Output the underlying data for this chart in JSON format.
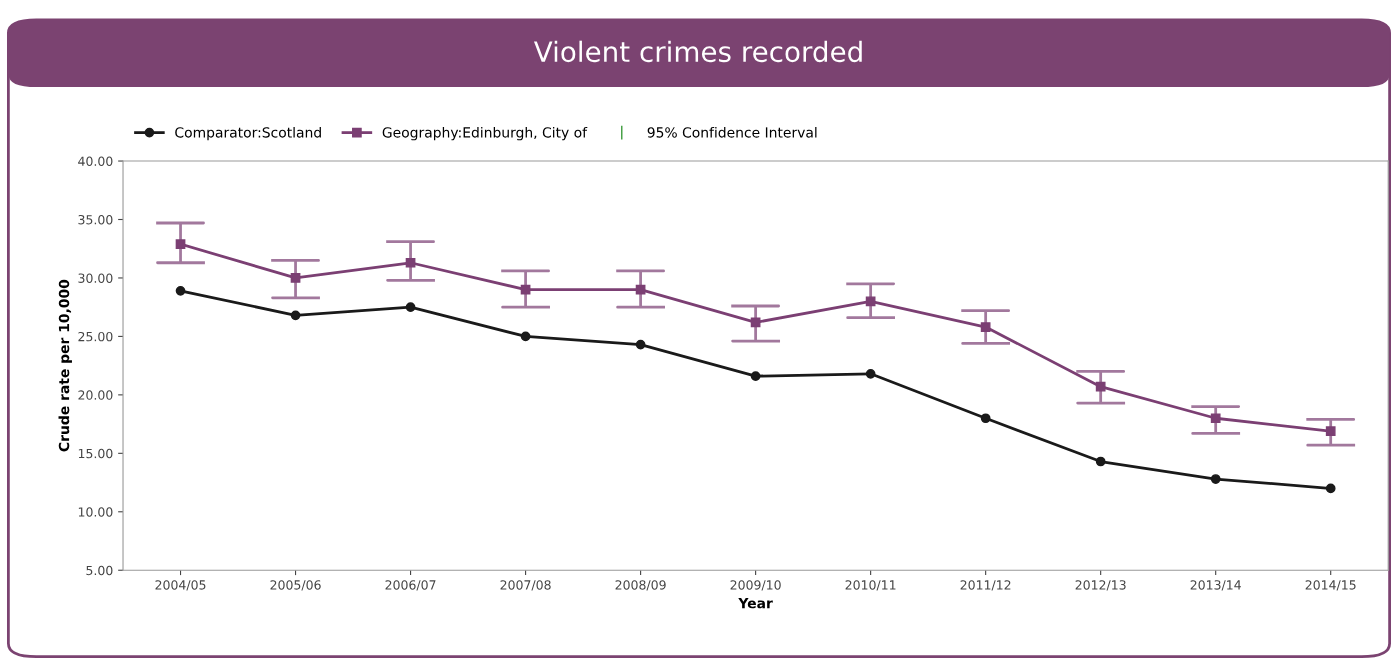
{
  "chart_data": {
    "type": "line",
    "title": "Violent crimes recorded",
    "xlabel": "Year",
    "ylabel": "Crude rate per 10,000",
    "categories": [
      "2004/05",
      "2005/06",
      "2006/07",
      "2007/08",
      "2008/09",
      "2009/10",
      "2010/11",
      "2011/12",
      "2012/13",
      "2013/14",
      "2014/15"
    ],
    "series": [
      {
        "name": "Comparator:Scotland",
        "color": "#1a1a1a",
        "marker": "circle",
        "values": [
          28.9,
          26.8,
          27.5,
          25.0,
          24.3,
          21.6,
          21.8,
          18.0,
          14.3,
          12.8,
          12.0
        ]
      },
      {
        "name": "Geography:Edinburgh, City of",
        "color": "#7b3f73",
        "marker": "square",
        "values": [
          32.9,
          30.0,
          31.3,
          29.0,
          29.0,
          26.2,
          28.0,
          25.8,
          20.7,
          18.0,
          16.9
        ],
        "errors": [
          [
            31.3,
            34.7
          ],
          [
            28.3,
            31.5
          ],
          [
            29.8,
            33.1
          ],
          [
            27.5,
            30.6
          ],
          [
            27.5,
            30.6
          ],
          [
            24.6,
            27.6
          ],
          [
            26.6,
            29.5
          ],
          [
            24.4,
            27.2
          ],
          [
            19.3,
            22.0
          ],
          [
            16.7,
            19.0
          ],
          [
            15.7,
            17.9
          ]
        ]
      }
    ],
    "annotations": [
      "95% Confidence Interval"
    ],
    "ylim": [
      5,
      40
    ],
    "yticks": [
      {
        "value": 5,
        "label": "5.00"
      },
      {
        "value": 10,
        "label": "10.00"
      },
      {
        "value": 15,
        "label": "15.00"
      },
      {
        "value": 20,
        "label": "20.00"
      },
      {
        "value": 25,
        "label": "25.00"
      },
      {
        "value": 30,
        "label": "30.00"
      },
      {
        "value": 35,
        "label": "35.00"
      },
      {
        "value": 40,
        "label": "40.00"
      }
    ],
    "grid": false,
    "legend": "top left",
    "line_style": "solid"
  }
}
